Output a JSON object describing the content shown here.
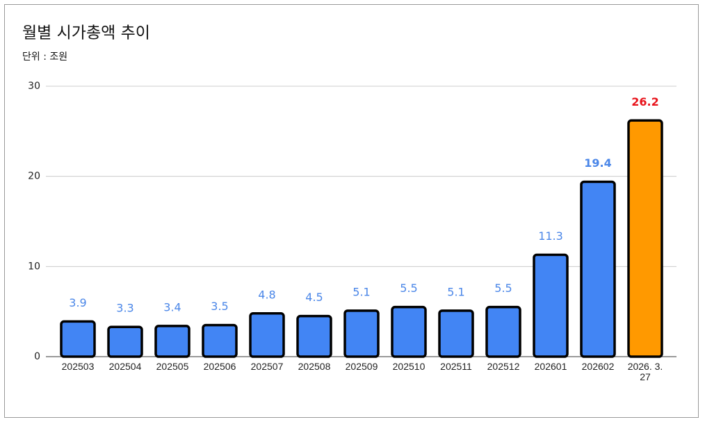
{
  "chart_data": {
    "type": "bar",
    "title": "월별 시가총액 추이",
    "subtitle": "단위 : 조원",
    "categories": [
      "202503",
      "202504",
      "202505",
      "202506",
      "202507",
      "202508",
      "202509",
      "202510",
      "202511",
      "202512",
      "202601",
      "202602",
      "2026. 3. 27"
    ],
    "values": [
      3.9,
      3.3,
      3.4,
      3.5,
      4.8,
      4.5,
      5.1,
      5.5,
      5.1,
      5.5,
      11.3,
      19.4,
      26.2
    ],
    "colors": [
      "#4285f4",
      "#4285f4",
      "#4285f4",
      "#4285f4",
      "#4285f4",
      "#4285f4",
      "#4285f4",
      "#4285f4",
      "#4285f4",
      "#4285f4",
      "#4285f4",
      "#4285f4",
      "#ff9900"
    ],
    "label_colors": [
      "#4a86e8",
      "#4a86e8",
      "#4a86e8",
      "#4a86e8",
      "#4a86e8",
      "#4a86e8",
      "#4a86e8",
      "#4a86e8",
      "#4a86e8",
      "#4a86e8",
      "#4a86e8",
      "#4a86e8",
      "#e8141c"
    ],
    "label_bold": [
      false,
      false,
      false,
      false,
      false,
      false,
      false,
      false,
      false,
      false,
      false,
      true,
      true
    ],
    "ylim": [
      0,
      30
    ],
    "yticks": [
      0,
      10,
      20,
      30
    ],
    "grid": true
  }
}
